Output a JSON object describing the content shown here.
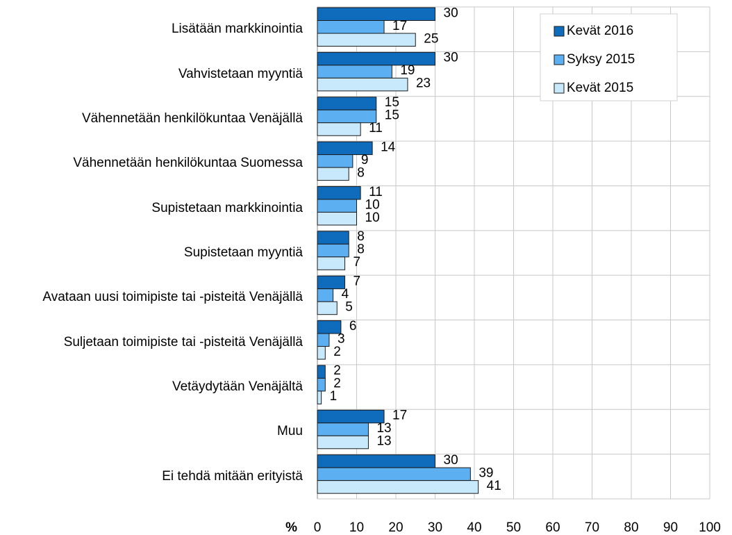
{
  "chart_data": {
    "type": "barh",
    "categories": [
      "Lisätään markkinointia",
      "Vahvistetaan myyntiä",
      "Vähennetään henkilökuntaa Venäjällä",
      "Vähennetään henkilökuntaa Suomessa",
      "Supistetaan markkinointia",
      "Supistetaan myyntiä",
      "Avataan uusi toimipiste tai -pisteitä Venäjällä",
      "Suljetaan toimipiste tai -pisteitä Venäjällä",
      "Vetäydytään Venäjältä",
      "Muu",
      "Ei tehdä mitään erityistä"
    ],
    "series": [
      {
        "name": "Kevät 2016",
        "color": "#0f6cbd",
        "values": [
          30,
          30,
          15,
          14,
          11,
          8,
          7,
          6,
          2,
          17,
          30
        ]
      },
      {
        "name": "Syksy 2015",
        "color": "#5cb0f2",
        "values": [
          17,
          19,
          15,
          9,
          10,
          8,
          4,
          3,
          2,
          13,
          39
        ]
      },
      {
        "name": "Kevät 2015",
        "color": "#c8e8fb",
        "values": [
          25,
          23,
          11,
          8,
          10,
          7,
          5,
          2,
          1,
          13,
          41
        ]
      }
    ],
    "x_label": "%",
    "xlim": [
      0,
      100
    ],
    "xticks": [
      0,
      10,
      20,
      30,
      40,
      50,
      60,
      70,
      80,
      90,
      100
    ],
    "grid": true,
    "legend": "top right"
  }
}
